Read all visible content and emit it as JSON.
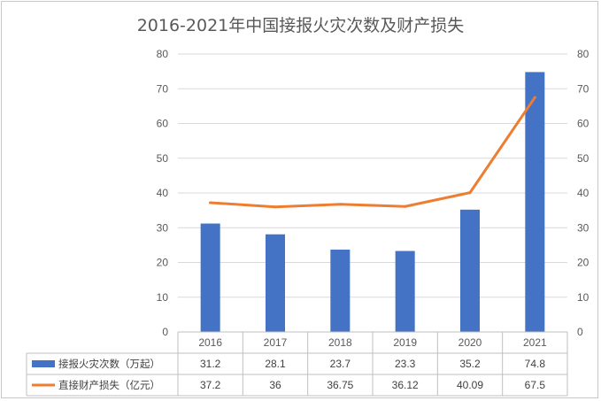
{
  "chart_data": {
    "type": "bar",
    "title": "2016-2021年中国接报火灾次数及财产损失",
    "categories": [
      "2016",
      "2017",
      "2018",
      "2019",
      "2020",
      "2021"
    ],
    "series": [
      {
        "name": "接报火灾次数（万起）",
        "type": "bar",
        "values": [
          31.2,
          28.1,
          23.7,
          23.3,
          35.2,
          74.8
        ],
        "labels": [
          "31.2",
          "28.1",
          "23.7",
          "23.3",
          "35.2",
          "74.8"
        ],
        "color": "#4472c4"
      },
      {
        "name": "直接财产损失（亿元）",
        "type": "line",
        "values": [
          37.2,
          36,
          36.75,
          36.12,
          40.09,
          67.5
        ],
        "labels": [
          "37.2",
          "36",
          "36.75",
          "36.12",
          "40.09",
          "67.5"
        ],
        "color": "#ed7d31"
      }
    ],
    "ylim": [
      0,
      80
    ],
    "y_ticks": [
      "0",
      "10",
      "20",
      "30",
      "40",
      "50",
      "60",
      "70",
      "80"
    ],
    "secondary_ylim": [
      0,
      80
    ],
    "grid": true,
    "data_table": true
  }
}
